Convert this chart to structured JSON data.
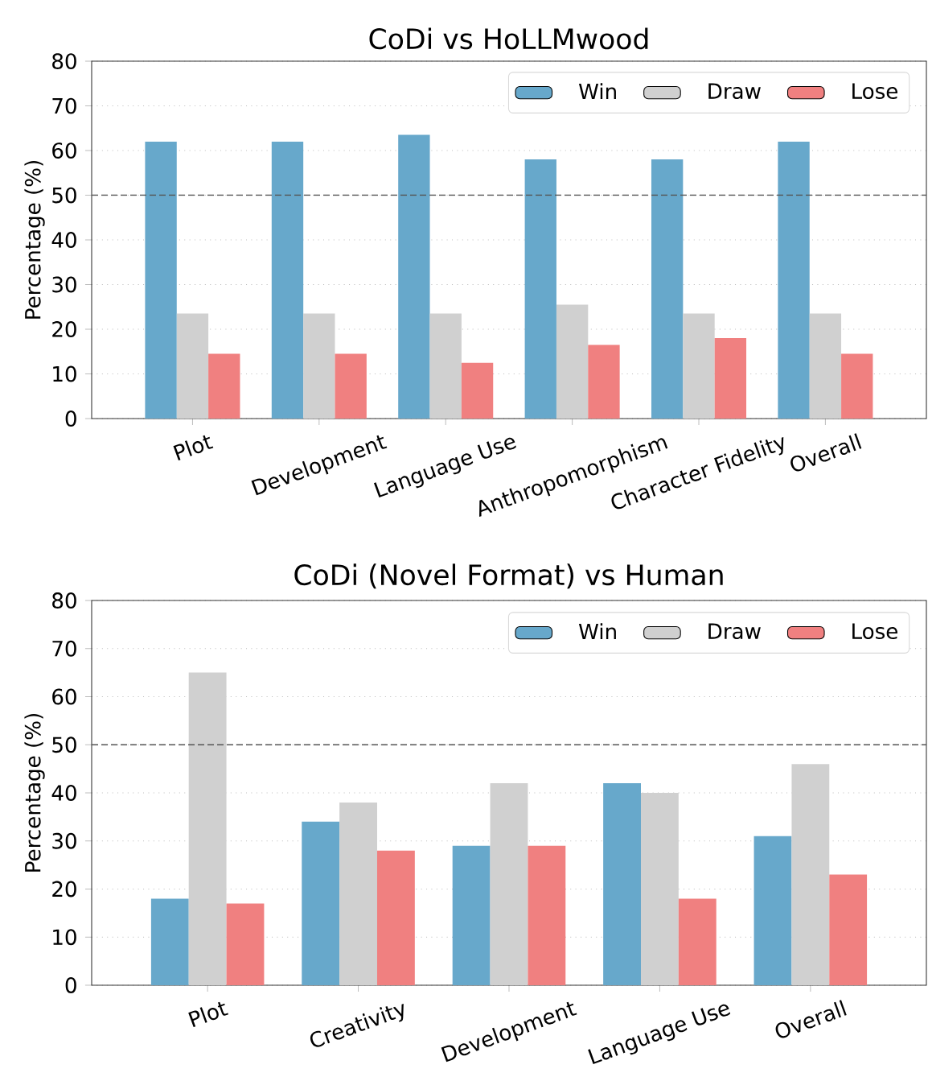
{
  "chart_data": [
    {
      "type": "bar",
      "title": "CoDi vs HoLLMwood",
      "ylabel": "Percentage (%)",
      "categories": [
        "Plot",
        "Development",
        "Language Use",
        "Anthropomorphism",
        "Character Fidelity",
        "Overall"
      ],
      "series": [
        {
          "name": "Win",
          "color": "#67a8cb",
          "values": [
            62,
            62,
            63.5,
            58,
            58,
            62
          ]
        },
        {
          "name": "Draw",
          "color": "#d0d0d0",
          "values": [
            23.5,
            23.5,
            23.5,
            25.5,
            23.5,
            23.5
          ]
        },
        {
          "name": "Lose",
          "color": "#f08080",
          "values": [
            14.5,
            14.5,
            12.5,
            16.5,
            18,
            14.5
          ]
        }
      ],
      "ylim": [
        0,
        80
      ],
      "yticks": [
        0,
        10,
        20,
        30,
        40,
        50,
        60,
        70,
        80
      ],
      "grid": "y",
      "legend": "top right",
      "ref_lines": [
        {
          "axis": "y",
          "value": 50,
          "color": "#555555",
          "line_style": "dashed"
        }
      ]
    },
    {
      "type": "bar",
      "title": "CoDi (Novel Format) vs Human",
      "ylabel": "Percentage (%)",
      "categories": [
        "Plot",
        "Creativity",
        "Development",
        "Language Use",
        "Overall"
      ],
      "series": [
        {
          "name": "Win",
          "color": "#67a8cb",
          "values": [
            18,
            34,
            29,
            42,
            31
          ]
        },
        {
          "name": "Draw",
          "color": "#d0d0d0",
          "values": [
            65,
            38,
            42,
            40,
            46
          ]
        },
        {
          "name": "Lose",
          "color": "#f08080",
          "values": [
            17,
            28,
            29,
            18,
            23
          ]
        }
      ],
      "ylim": [
        0,
        80
      ],
      "yticks": [
        0,
        10,
        20,
        30,
        40,
        50,
        60,
        70,
        80
      ],
      "grid": "y",
      "legend": "top right",
      "ref_lines": [
        {
          "axis": "y",
          "value": 50,
          "color": "#555555",
          "line_style": "dashed"
        }
      ]
    }
  ]
}
